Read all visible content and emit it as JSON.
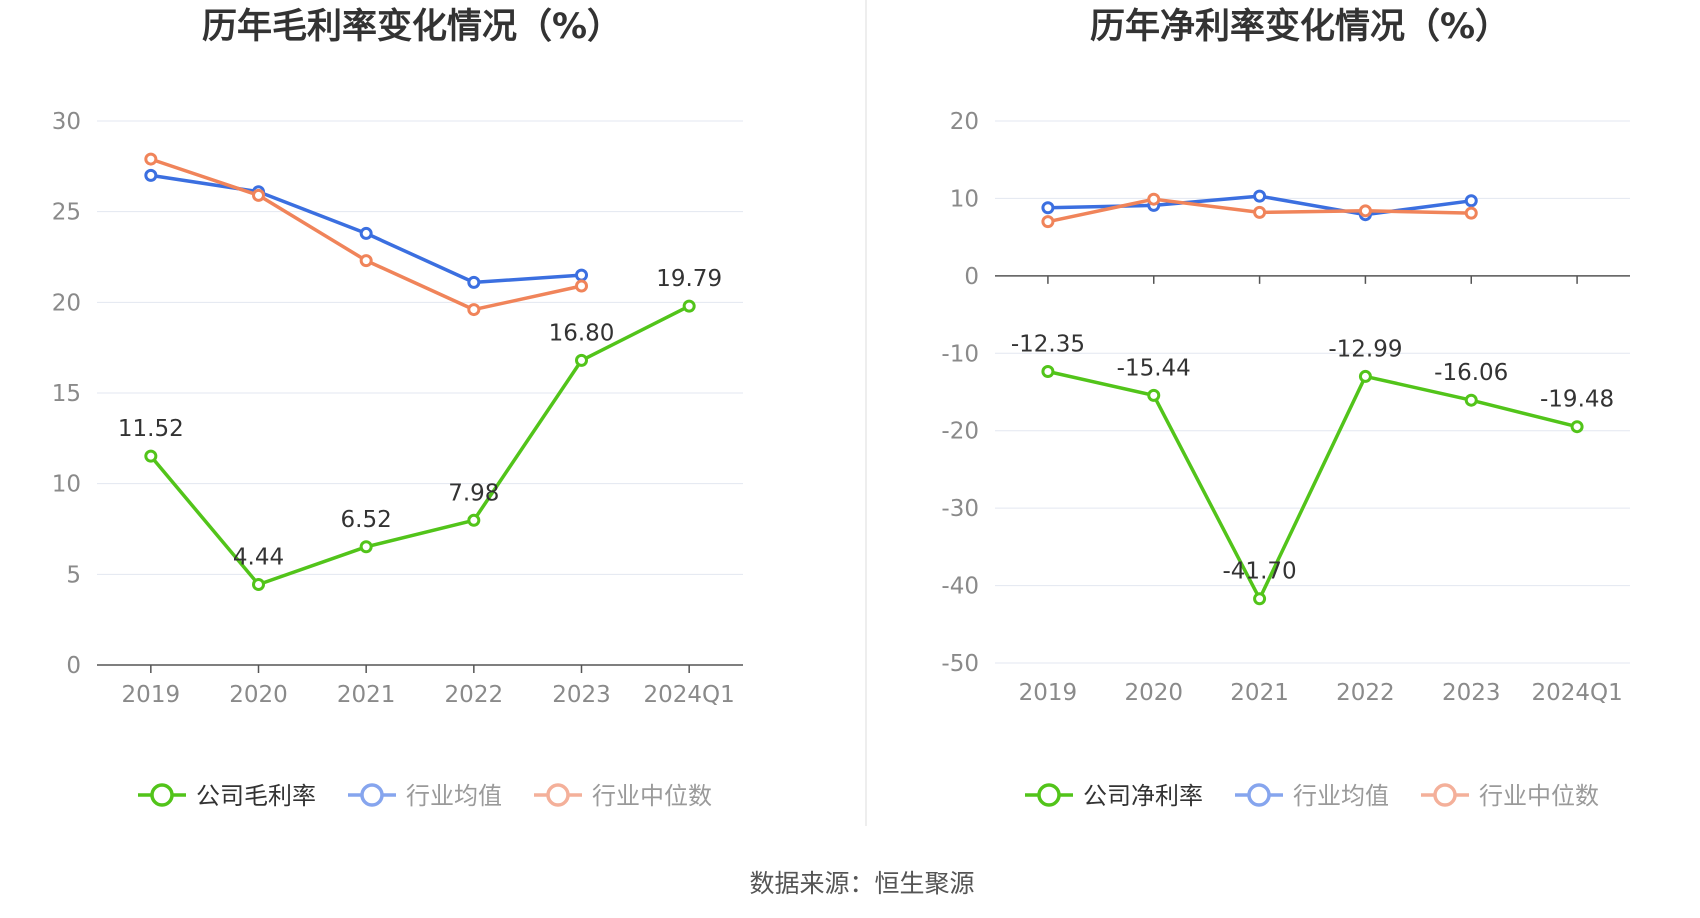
{
  "colors": {
    "company": "#52c41a",
    "industry_avg": "#3b6fe0",
    "industry_median": "#f0845a",
    "grid": "#e3e7f0",
    "axis": "#555555",
    "divider": "#eeeeee"
  },
  "source": "数据来源：恒生聚源",
  "chart_data": [
    {
      "type": "line",
      "title": "历年毛利率变化情况（%）",
      "categories": [
        "2019",
        "2020",
        "2021",
        "2022",
        "2023",
        "2024Q1"
      ],
      "ylim": [
        0,
        30
      ],
      "yticks": [
        0,
        5,
        10,
        15,
        20,
        25,
        30
      ],
      "grid": true,
      "legend_position": "bottom",
      "series": [
        {
          "name": "公司毛利率",
          "color": "#52c41a",
          "values": [
            11.52,
            4.44,
            6.52,
            7.98,
            16.8,
            19.79
          ],
          "labels": [
            "11.52",
            "4.44",
            "6.52",
            "7.98",
            "16.80",
            "19.79"
          ]
        },
        {
          "name": "行业均值",
          "color": "#3b6fe0",
          "values": [
            27.0,
            26.1,
            23.8,
            21.1,
            21.5,
            null
          ]
        },
        {
          "name": "行业中位数",
          "color": "#f0845a",
          "values": [
            27.9,
            25.9,
            22.3,
            19.6,
            20.9,
            null
          ]
        }
      ]
    },
    {
      "type": "line",
      "title": "历年净利率变化情况（%）",
      "categories": [
        "2019",
        "2020",
        "2021",
        "2022",
        "2023",
        "2024Q1"
      ],
      "ylim": [
        -50,
        20
      ],
      "yticks": [
        -50,
        -40,
        -30,
        -20,
        -10,
        0,
        10,
        20
      ],
      "grid": true,
      "legend_position": "bottom",
      "series": [
        {
          "name": "公司净利率",
          "color": "#52c41a",
          "values": [
            -12.35,
            -15.44,
            -41.7,
            -12.99,
            -16.06,
            -19.48
          ],
          "labels": [
            "-12.35",
            "-15.44",
            "-41.70",
            "-12.99",
            "-16.06",
            "-19.48"
          ]
        },
        {
          "name": "行业均值",
          "color": "#3b6fe0",
          "values": [
            8.8,
            9.1,
            10.3,
            7.9,
            9.7,
            null
          ]
        },
        {
          "name": "行业中位数",
          "color": "#f0845a",
          "values": [
            7.0,
            9.9,
            8.2,
            8.4,
            8.1,
            null
          ]
        }
      ]
    }
  ]
}
